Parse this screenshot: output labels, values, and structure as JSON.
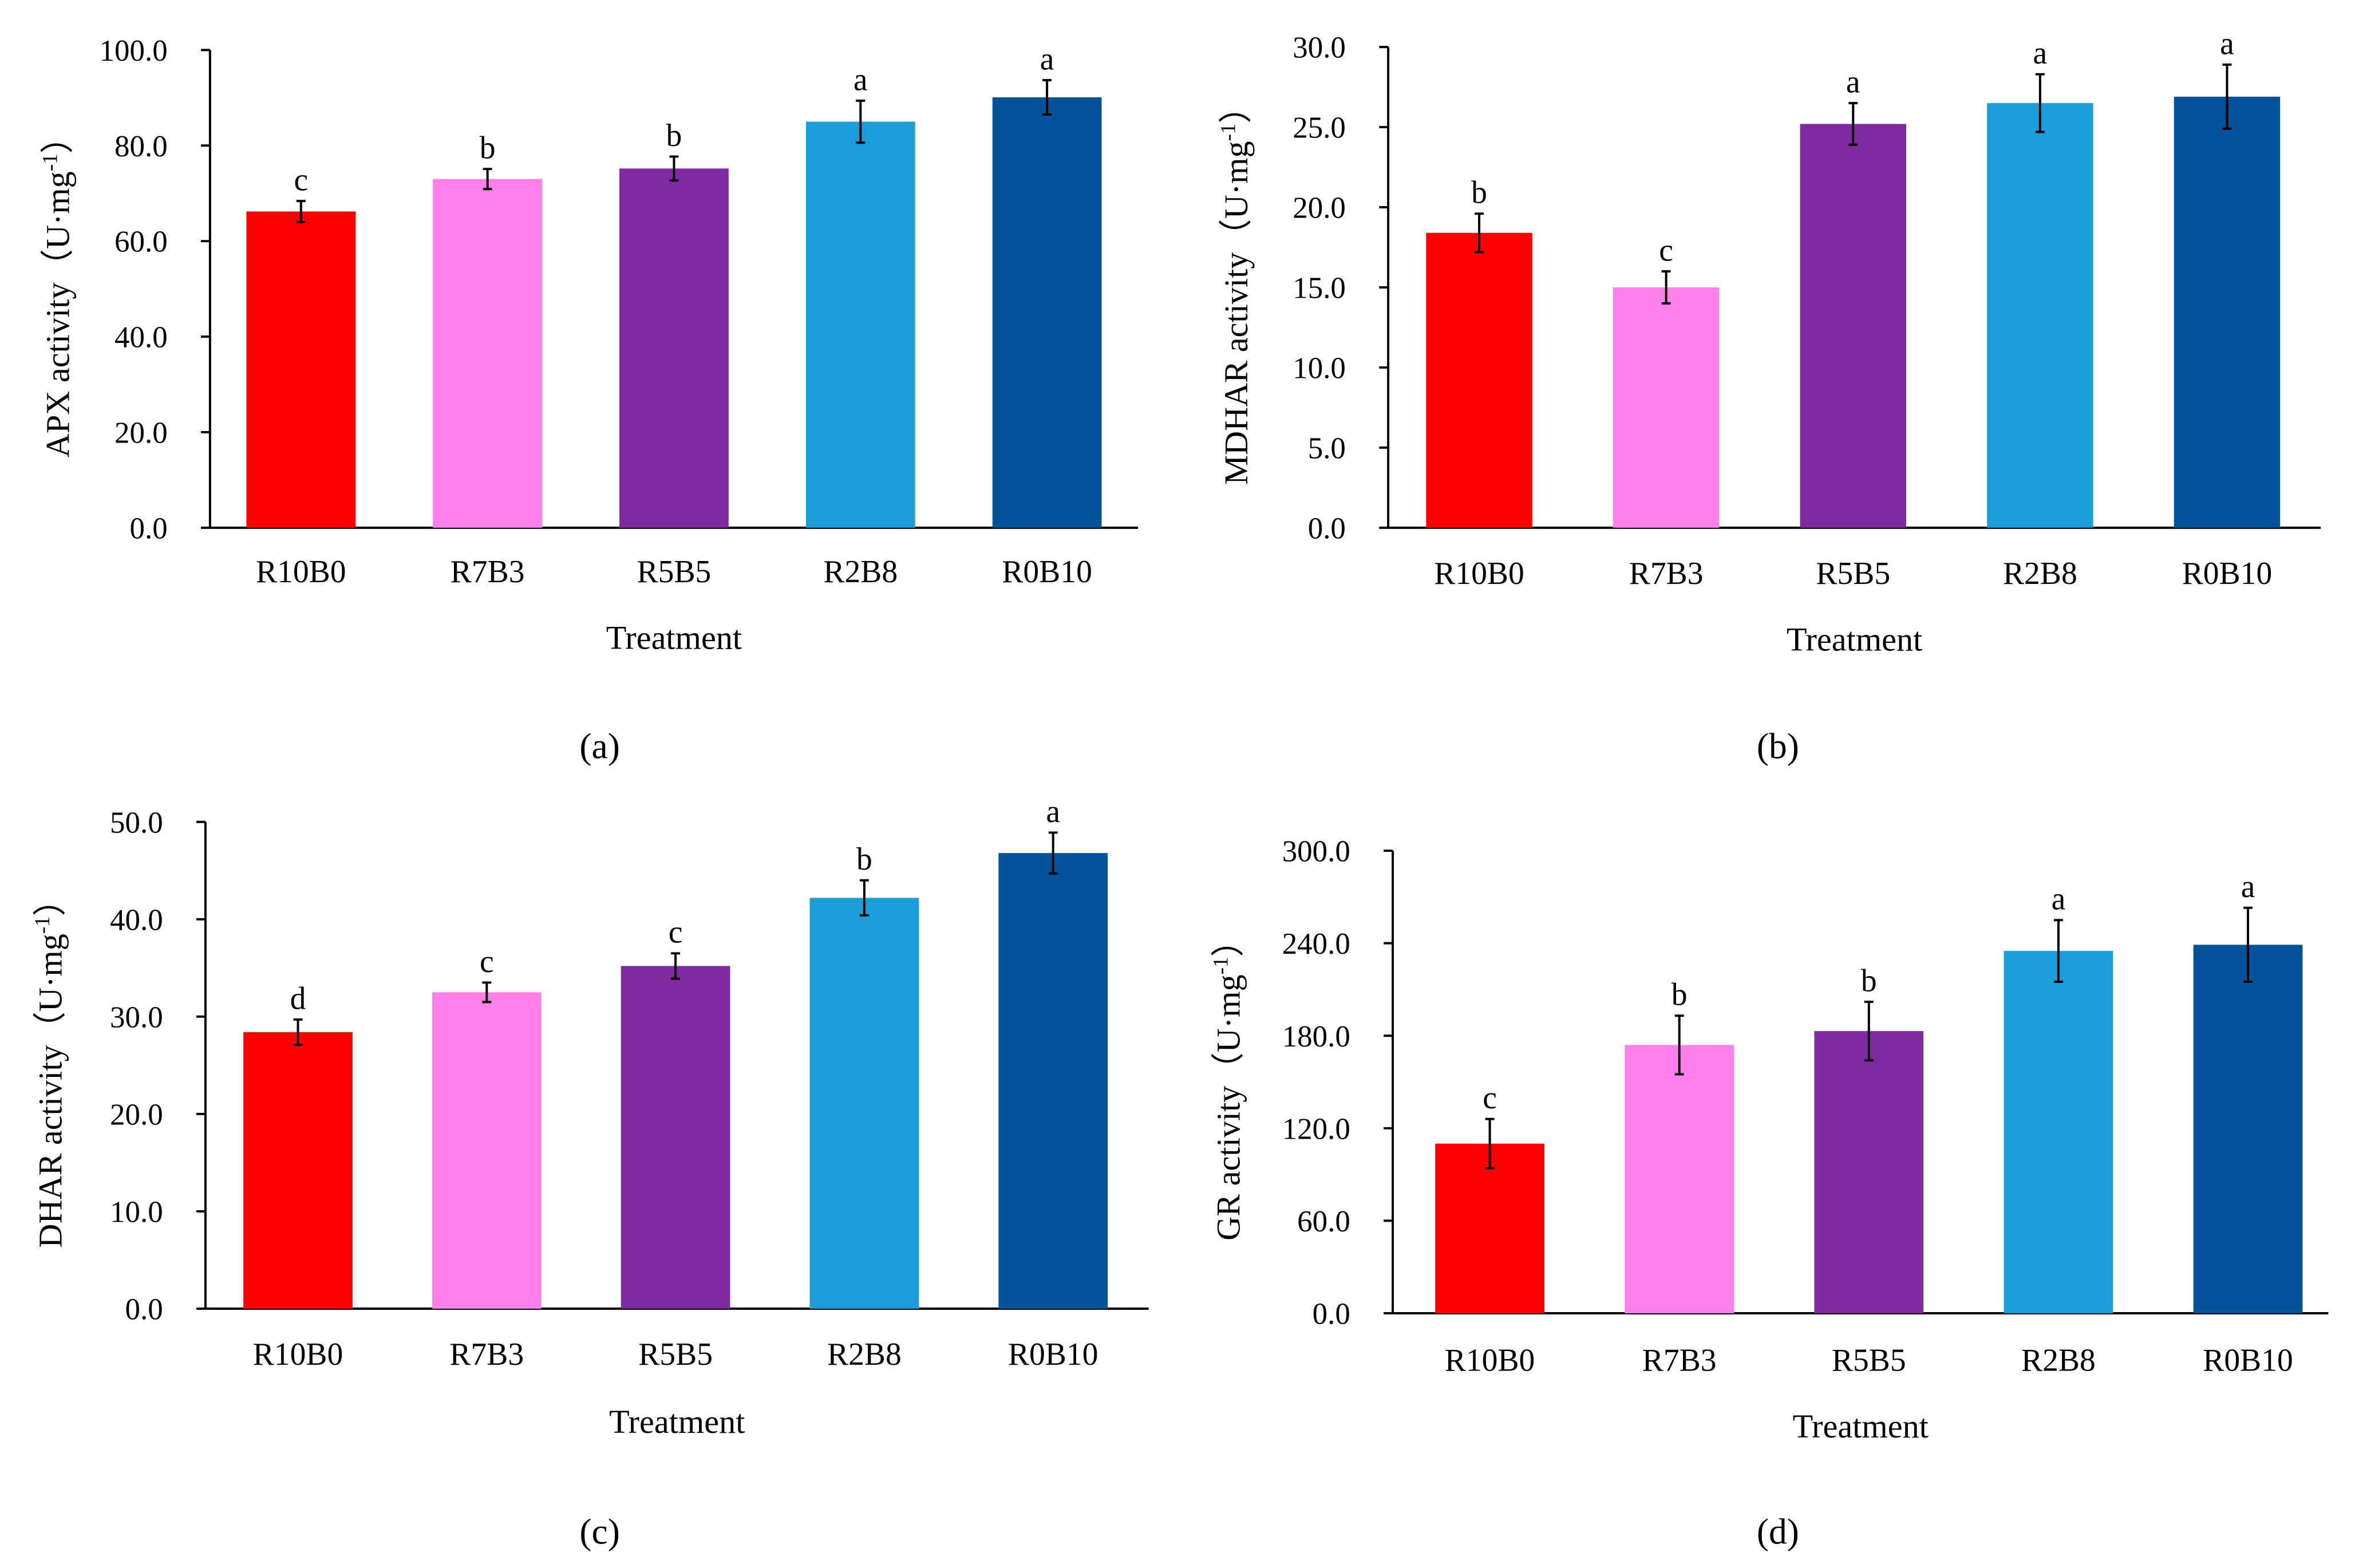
{
  "colors": [
    "#FF0000",
    "#FF80E8",
    "#7F2AA0",
    "#1A9DD9",
    "#02539A"
  ],
  "chart_data": [
    {
      "type": "bar",
      "panel": "(a)",
      "categories": [
        "R10B0",
        "R7B3",
        "R5B5",
        "R2B8",
        "R0B10"
      ],
      "values": [
        66.2,
        73.0,
        75.2,
        85.0,
        90.1
      ],
      "errors": [
        2.2,
        2.1,
        2.5,
        4.4,
        3.6
      ],
      "letters": [
        "c",
        "b",
        "b",
        "a",
        "a"
      ],
      "xlabel": "Treatment",
      "ylabel": "APX activity（U·mg",
      "ylabel_sup": "-1",
      "ylabel_end": "）",
      "ylim": [
        0,
        100
      ],
      "ytick_step": 20,
      "yticks": [
        "0.0",
        "20.0",
        "40.0",
        "60.0",
        "80.0",
        "100.0"
      ]
    },
    {
      "type": "bar",
      "panel": "(b)",
      "categories": [
        "R10B0",
        "R7B3",
        "R5B5",
        "R2B8",
        "R0B10"
      ],
      "values": [
        18.4,
        15.0,
        25.2,
        26.5,
        26.9
      ],
      "errors": [
        1.2,
        1.0,
        1.3,
        1.8,
        2.0
      ],
      "letters": [
        "b",
        "c",
        "a",
        "a",
        "a"
      ],
      "xlabel": "Treatment",
      "ylabel": "MDHAR activity（U·mg",
      "ylabel_sup": "-1",
      "ylabel_end": "）",
      "ylim": [
        0,
        30
      ],
      "ytick_step": 5,
      "yticks": [
        "0.0",
        "5.0",
        "10.0",
        "15.0",
        "20.0",
        "25.0",
        "30.0"
      ]
    },
    {
      "type": "bar",
      "panel": "(c)",
      "categories": [
        "R10B0",
        "R7B3",
        "R5B5",
        "R2B8",
        "R0B10"
      ],
      "values": [
        28.4,
        32.5,
        35.2,
        42.2,
        46.8
      ],
      "errors": [
        1.3,
        1.0,
        1.3,
        1.8,
        2.1
      ],
      "letters": [
        "d",
        "c",
        "c",
        "b",
        "a"
      ],
      "xlabel": "Treatment",
      "ylabel": "DHAR activity（U·mg",
      "ylabel_sup": "-1",
      "ylabel_end": "）",
      "ylim": [
        0,
        50
      ],
      "ytick_step": 10,
      "yticks": [
        "0.0",
        "10.0",
        "20.0",
        "30.0",
        "40.0",
        "50.0"
      ]
    },
    {
      "type": "bar",
      "panel": "(d)",
      "categories": [
        "R10B0",
        "R7B3",
        "R5B5",
        "R2B8",
        "R0B10"
      ],
      "values": [
        110,
        174,
        183,
        235,
        239
      ],
      "errors": [
        16,
        19,
        19,
        20,
        24
      ],
      "letters": [
        "c",
        "b",
        "b",
        "a",
        "a"
      ],
      "xlabel": "Treatment",
      "ylabel": "GR activity（U·mg",
      "ylabel_sup": "-1",
      "ylabel_end": "）",
      "ylim": [
        0,
        300
      ],
      "ytick_step": 60,
      "yticks": [
        "0.0",
        "60.0",
        "120.0",
        "180.0",
        "240.0",
        "300.0"
      ]
    }
  ]
}
